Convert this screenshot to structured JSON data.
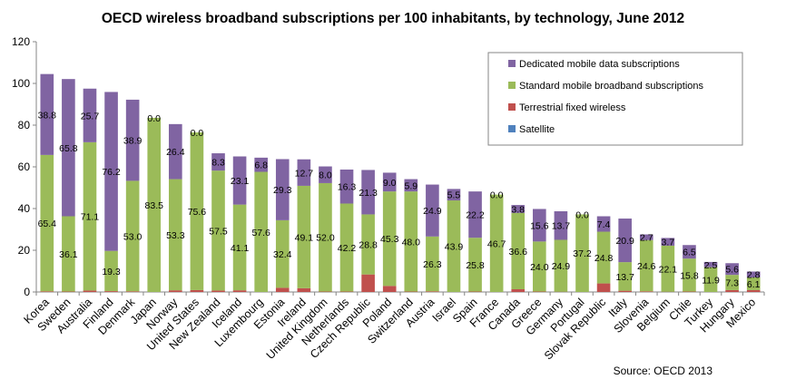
{
  "chart_data": {
    "type": "bar",
    "stacked": true,
    "title": "OECD wireless broadband subscriptions per 100 inhabitants, by technology, June 2012",
    "source": "Source: OECD 2013",
    "ylim": [
      0,
      120
    ],
    "yticks": [
      0,
      20,
      40,
      60,
      80,
      100,
      120
    ],
    "grid": false,
    "legend_position": "top-right",
    "categories": [
      "Korea",
      "Sweden",
      "Australia",
      "Finland",
      "Denmark",
      "Japan",
      "Norway",
      "United States",
      "New Zealand",
      "Iceland",
      "Luxembourg",
      "Estonia",
      "Ireland",
      "United Kingdom",
      "Netherlands",
      "Czech Republic",
      "Poland",
      "Switzerland",
      "Austria",
      "Israel",
      "Spain",
      "France",
      "Canada",
      "Greece",
      "Germany",
      "Portugal",
      "Slovak Republic",
      "Italy",
      "Slovenia",
      "Belgium",
      "Chile",
      "Turkey",
      "Hungary",
      "Mexico"
    ],
    "series": [
      {
        "name": "Satellite",
        "color": "#4f81bd",
        "values": [
          0,
          0,
          0,
          0,
          0,
          0,
          0,
          0,
          0,
          0,
          0,
          0,
          0,
          0,
          0,
          0,
          0,
          0,
          0,
          0,
          0,
          0,
          0,
          0,
          0,
          0,
          0,
          0,
          0,
          0,
          0,
          0,
          0,
          0
        ]
      },
      {
        "name": "Terrestrial fixed wireless",
        "color": "#c0504d",
        "values": [
          0.3,
          0.2,
          0.7,
          0.4,
          0.3,
          0,
          0.8,
          0.9,
          0.7,
          0.8,
          0,
          2.0,
          1.8,
          0.2,
          0.2,
          8.4,
          2.9,
          0.2,
          0.3,
          0,
          0.2,
          0,
          1.3,
          0.2,
          0.1,
          0,
          4.1,
          0.6,
          0.3,
          0.1,
          0.2,
          0,
          0.9,
          0.9
        ]
      },
      {
        "name": "Standard mobile broadband subscriptions",
        "color": "#9bbb59",
        "values": [
          65.4,
          36.1,
          71.1,
          19.3,
          53.0,
          83.5,
          53.3,
          75.6,
          57.5,
          41.1,
          57.6,
          32.4,
          49.1,
          52.0,
          42.2,
          28.8,
          45.3,
          48.0,
          26.3,
          43.9,
          25.8,
          46.7,
          36.6,
          24.0,
          24.9,
          37.2,
          24.8,
          13.7,
          24.6,
          22.1,
          15.8,
          11.9,
          7.3,
          6.1
        ]
      },
      {
        "name": "Dedicated mobile data subscriptions",
        "color": "#8064a2",
        "values": [
          38.8,
          65.8,
          25.7,
          76.2,
          38.9,
          0.0,
          26.4,
          0.0,
          8.3,
          23.1,
          6.8,
          29.3,
          12.7,
          8.0,
          16.3,
          21.3,
          9.0,
          5.9,
          24.9,
          5.5,
          22.2,
          0.0,
          3.8,
          15.6,
          13.7,
          0.0,
          7.4,
          20.9,
          2.7,
          3.7,
          6.5,
          2.5,
          5.6,
          2.8
        ]
      }
    ],
    "labeled_series": [
      "Standard mobile broadband subscriptions",
      "Dedicated mobile data subscriptions"
    ],
    "legend_order": [
      "Dedicated mobile data subscriptions",
      "Standard mobile broadband subscriptions",
      "Terrestrial fixed wireless",
      "Satellite"
    ]
  }
}
